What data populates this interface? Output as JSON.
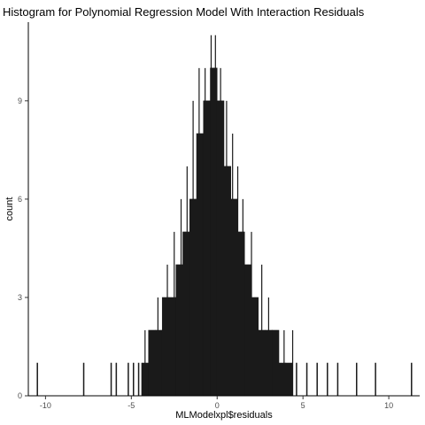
{
  "chart_data": {
    "type": "bar",
    "subtype": "histogram",
    "title": "Histogram for Polynomial Regression Model With Interaction Residuals",
    "xlabel": "MLModelxpl$residuals",
    "ylabel": "count",
    "xlim": [
      -11,
      11.8
    ],
    "ylim": [
      0,
      11.4
    ],
    "x_ticks": [
      -10,
      -5,
      0,
      5,
      10
    ],
    "y_ticks": [
      0,
      3,
      6,
      9
    ],
    "grid": false,
    "legend": "none",
    "bar_color": "#1a1a1a",
    "bins": [
      {
        "x0": -10.5,
        "x1": -10.45,
        "count": 1
      },
      {
        "x0": -7.8,
        "x1": -7.75,
        "count": 1
      },
      {
        "x0": -6.2,
        "x1": -6.15,
        "count": 1
      },
      {
        "x0": -5.9,
        "x1": -5.85,
        "count": 1
      },
      {
        "x0": -5.2,
        "x1": -5.15,
        "count": 1
      },
      {
        "x0": -4.9,
        "x1": -4.85,
        "count": 1
      },
      {
        "x0": -4.6,
        "x1": -4.55,
        "count": 1
      },
      {
        "x0": -4.4,
        "x1": -4.0,
        "count": 1
      },
      {
        "x0": -4.0,
        "x1": -3.6,
        "count": 2
      },
      {
        "x0": -3.6,
        "x1": -3.2,
        "count": 2
      },
      {
        "x0": -3.2,
        "x1": -2.8,
        "count": 3
      },
      {
        "x0": -2.8,
        "x1": -2.4,
        "count": 3
      },
      {
        "x0": -2.4,
        "x1": -2.0,
        "count": 4
      },
      {
        "x0": -2.0,
        "x1": -1.6,
        "count": 5
      },
      {
        "x0": -1.6,
        "x1": -1.2,
        "count": 6
      },
      {
        "x0": -1.2,
        "x1": -0.8,
        "count": 8
      },
      {
        "x0": -0.8,
        "x1": -0.4,
        "count": 9
      },
      {
        "x0": -0.4,
        "x1": 0.0,
        "count": 10
      },
      {
        "x0": 0.0,
        "x1": 0.4,
        "count": 9
      },
      {
        "x0": 0.4,
        "x1": 0.8,
        "count": 7
      },
      {
        "x0": 0.8,
        "x1": 1.2,
        "count": 6
      },
      {
        "x0": 1.2,
        "x1": 1.6,
        "count": 5
      },
      {
        "x0": 1.6,
        "x1": 2.0,
        "count": 4
      },
      {
        "x0": 2.0,
        "x1": 2.4,
        "count": 3
      },
      {
        "x0": 2.4,
        "x1": 2.8,
        "count": 2
      },
      {
        "x0": 2.8,
        "x1": 3.2,
        "count": 2
      },
      {
        "x0": 3.2,
        "x1": 3.6,
        "count": 2
      },
      {
        "x0": 3.6,
        "x1": 4.0,
        "count": 1
      },
      {
        "x0": 4.0,
        "x1": 4.4,
        "count": 1
      },
      {
        "x0": 4.6,
        "x1": 4.65,
        "count": 1
      },
      {
        "x0": 5.2,
        "x1": 5.25,
        "count": 1
      },
      {
        "x0": 5.8,
        "x1": 5.85,
        "count": 1
      },
      {
        "x0": 6.4,
        "x1": 6.45,
        "count": 1
      },
      {
        "x0": 7.0,
        "x1": 7.05,
        "count": 1
      },
      {
        "x0": 8.1,
        "x1": 8.15,
        "count": 1
      },
      {
        "x0": 9.2,
        "x1": 9.25,
        "count": 1
      },
      {
        "x0": 11.3,
        "x1": 11.35,
        "count": 1
      }
    ],
    "spikes": [
      {
        "x": -4.2,
        "count": 2
      },
      {
        "x": -3.45,
        "count": 3
      },
      {
        "x": -2.9,
        "count": 4
      },
      {
        "x": -2.5,
        "count": 5
      },
      {
        "x": -2.1,
        "count": 6
      },
      {
        "x": -1.75,
        "count": 7
      },
      {
        "x": -1.4,
        "count": 9
      },
      {
        "x": -1.05,
        "count": 10
      },
      {
        "x": -0.7,
        "count": 10
      },
      {
        "x": -0.35,
        "count": 11
      },
      {
        "x": -0.1,
        "count": 11
      },
      {
        "x": 0.2,
        "count": 10
      },
      {
        "x": 0.55,
        "count": 9
      },
      {
        "x": 0.9,
        "count": 8
      },
      {
        "x": 1.2,
        "count": 7
      },
      {
        "x": 1.5,
        "count": 6
      },
      {
        "x": 2.0,
        "count": 5
      },
      {
        "x": 2.6,
        "count": 4
      },
      {
        "x": 3.0,
        "count": 3
      },
      {
        "x": 3.9,
        "count": 2
      },
      {
        "x": 4.4,
        "count": 2
      }
    ]
  }
}
